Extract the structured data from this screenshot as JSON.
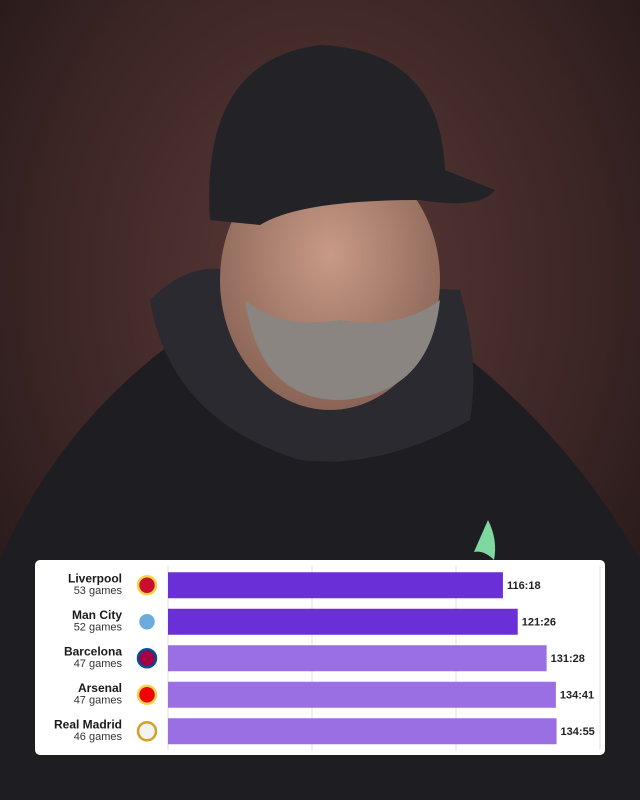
{
  "chart_data": {
    "type": "bar",
    "categories": [
      "Liverpool",
      "Man City",
      "Barcelona",
      "Arsenal",
      "Real Madrid"
    ],
    "sublabels": [
      "53 games",
      "52 games",
      "47 games",
      "47 games",
      "46 games"
    ],
    "values": [
      116.3,
      121.4333,
      131.4667,
      134.6833,
      134.9167
    ],
    "value_labels": [
      "116:18",
      "121:26",
      "131:28",
      "134:41",
      "134:55"
    ],
    "colors": [
      "#6a2fd6",
      "#6a2fd6",
      "#9a6fe3",
      "#9a6fe3",
      "#9a6fe3"
    ],
    "xlim": [
      0,
      150
    ],
    "xticks": [
      0,
      50,
      100,
      150
    ],
    "grid": true
  }
}
